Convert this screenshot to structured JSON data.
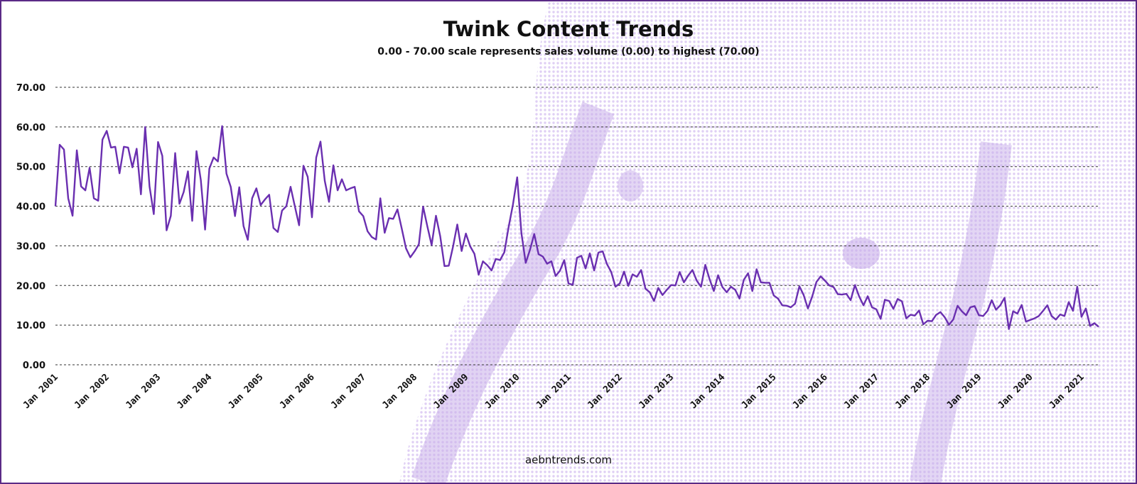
{
  "colors": {
    "line": "#6a2fb0",
    "border": "#5b2a86",
    "background_art": "#d9c6f2",
    "grid": "#333333"
  },
  "chart_data": {
    "type": "line",
    "title": "Twink Content Trends",
    "subtitle": "0.00 - 70.00 scale represents sales volume (0.00) to highest (70.00)",
    "source": "aebntrends.com",
    "ylim": [
      0,
      70
    ],
    "yticks": [
      "0.00",
      "10.00",
      "20.00",
      "30.00",
      "40.00",
      "50.00",
      "60.00",
      "70.00"
    ],
    "xticks": [
      "Jan 2001",
      "Jan 2002",
      "Jan 2003",
      "Jan 2004",
      "Jan 2005",
      "Jan 2006",
      "Jan 2007",
      "Jan 2008",
      "Jan 2009",
      "Jan 2010",
      "Jan 2011",
      "Jan 2012",
      "Jan 2013",
      "Jan 2014",
      "Jan 2015",
      "Jan 2016",
      "Jan 2017",
      "Jan 2018",
      "Jan 2019",
      "Jan 2020",
      "Jan 2021"
    ],
    "x_start": "2001-01",
    "x_end": "2021-10",
    "grid": true,
    "legend": "none",
    "series": [
      {
        "values": [
          40.0,
          55.5,
          54.3,
          42.0,
          37.6,
          54.1,
          45.0,
          44.0,
          49.7,
          42.0,
          41.4,
          56.8,
          59.0,
          54.8,
          55.0,
          48.3,
          55.0,
          54.8,
          49.8,
          54.5,
          43.0,
          60.0,
          45.0,
          38.0,
          56.2,
          52.7,
          33.9,
          37.6,
          53.4,
          40.6,
          43.6,
          48.8,
          36.3,
          53.9,
          46.6,
          34.1,
          49.5,
          52.3,
          51.3,
          60.2,
          48.2,
          44.9,
          37.5,
          44.8,
          35.0,
          31.5,
          42.0,
          44.5,
          40.3,
          41.7,
          42.9,
          34.5,
          33.5,
          38.9,
          40.0,
          44.9,
          40.0,
          35.2,
          50.2,
          47.4,
          37.2,
          52.3,
          56.3,
          46.4,
          41.1,
          50.3,
          44.0,
          46.8,
          44.0,
          44.5,
          44.9,
          38.7,
          37.5,
          33.7,
          32.2,
          31.6,
          42.0,
          33.3,
          37.0,
          36.8,
          39.2,
          34.4,
          29.4,
          27.1,
          28.6,
          30.4,
          39.9,
          34.9,
          30.2,
          37.6,
          32.4,
          24.9,
          25.0,
          29.8,
          35.4,
          28.7,
          33.1,
          29.9,
          28.0,
          22.7,
          26.1,
          25.1,
          23.8,
          26.7,
          26.4,
          28.4,
          34.7,
          40.4,
          47.3,
          33.1,
          25.7,
          29.0,
          33.0,
          27.9,
          27.3,
          25.5,
          26.1,
          22.4,
          23.7,
          26.4,
          20.5,
          20.2,
          27.0,
          27.5,
          24.3,
          28.1,
          23.8,
          28.3,
          28.6,
          25.4,
          23.4,
          19.7,
          20.5,
          23.5,
          19.9,
          22.8,
          22.2,
          23.9,
          19.2,
          18.3,
          16.1,
          19.4,
          17.6,
          18.9,
          20.1,
          20.0,
          23.4,
          20.8,
          22.5,
          23.9,
          21.2,
          19.7,
          25.2,
          21.6,
          18.6,
          22.6,
          19.6,
          18.3,
          19.7,
          18.9,
          16.7,
          21.4,
          23.1,
          18.6,
          24.1,
          20.8,
          20.7,
          20.7,
          17.5,
          16.7,
          15.0,
          14.9,
          14.5,
          15.4,
          19.8,
          17.6,
          14.2,
          17.2,
          20.9,
          22.3,
          21.2,
          20.0,
          19.6,
          17.8,
          17.7,
          17.9,
          16.3,
          20.1,
          17.2,
          15.0,
          17.3,
          14.5,
          14.0,
          11.6,
          16.4,
          16.1,
          14.1,
          16.6,
          16.0,
          11.7,
          12.6,
          12.4,
          13.7,
          10.2,
          11.1,
          11.0,
          12.6,
          13.3,
          12.0,
          10.1,
          11.4,
          14.9,
          13.5,
          12.5,
          14.5,
          14.8,
          12.5,
          12.3,
          13.6,
          16.3,
          13.9,
          15.0,
          16.9,
          9.0,
          13.5,
          12.9,
          15.1,
          10.9,
          11.3,
          11.7,
          12.3,
          13.6,
          15.0,
          12.3,
          11.4,
          12.7,
          12.3,
          15.8,
          13.6,
          19.7,
          12.1,
          14.2,
          9.8,
          10.5,
          9.6
        ]
      }
    ]
  }
}
